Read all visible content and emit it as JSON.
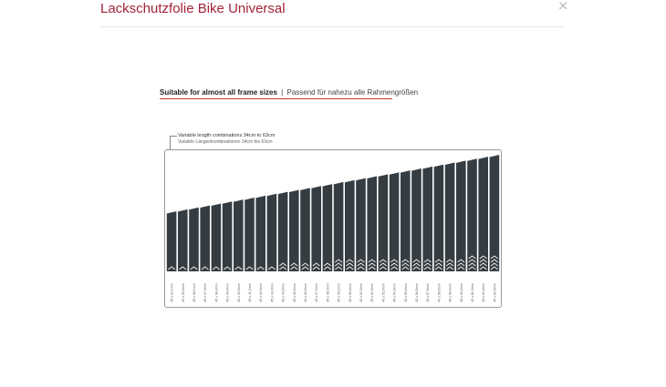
{
  "modal": {
    "title": "Lackschutzfolie Bike Universal",
    "close_glyph": "×"
  },
  "image": {
    "headline_en": "Suitable for almost all frame sizes",
    "headline_sep": "|",
    "headline_de": "Passend für nahezu alle Rahmengrößen",
    "caption_en": "Variable length combinations 34cm to 63cm",
    "caption_de": "Variable Längenkombinationen 34cm bis 63cm",
    "colors": {
      "strip": "#363d42",
      "accent": "#c0392b",
      "title": "#a3243b"
    }
  },
  "chart_data": {
    "type": "bar",
    "lengths_cm": [
      34,
      35,
      36,
      37,
      38,
      39,
      40,
      41,
      42,
      43,
      44,
      45,
      46,
      47,
      48,
      49,
      50,
      51,
      52,
      53,
      54,
      55,
      56,
      57,
      58,
      59,
      60,
      61,
      62,
      63
    ],
    "categories": [
      "45 x 34,1mm",
      "45 x 35,0mm",
      "45 x 36,1mm",
      "45 x 37,0mm",
      "45 x 38,0mm",
      "45 x 39,0mm",
      "45 x 40,5mm",
      "45 x 41,2mm",
      "45 x 42,0mm",
      "45 x 43,0mm",
      "45 x 44,5mm",
      "45 x 45,0mm",
      "45 x 46,0mm",
      "45 x 47,0mm",
      "45 x 48,0mm",
      "45 x 49,2mm",
      "45 x 50,0mm",
      "45 x 51,0mm",
      "45 x 52,0mm",
      "45 x 53,0mm",
      "45 x 54,0mm",
      "45 x 55,0mm",
      "45 x 56,0mm",
      "45 x 57,0mm",
      "45 x 58,0mm",
      "45 x 59,0mm",
      "45 x 60,0mm",
      "45 x 61,0mm",
      "45 x 62,0mm",
      "45 x 63,0mm"
    ],
    "chevrons": [
      1,
      1,
      1,
      1,
      1,
      1,
      1,
      1,
      1,
      1,
      2,
      2,
      2,
      2,
      2,
      3,
      3,
      3,
      3,
      3,
      3,
      3,
      3,
      3,
      3,
      3,
      3,
      4,
      4,
      4
    ],
    "ylim": [
      0,
      63
    ]
  }
}
